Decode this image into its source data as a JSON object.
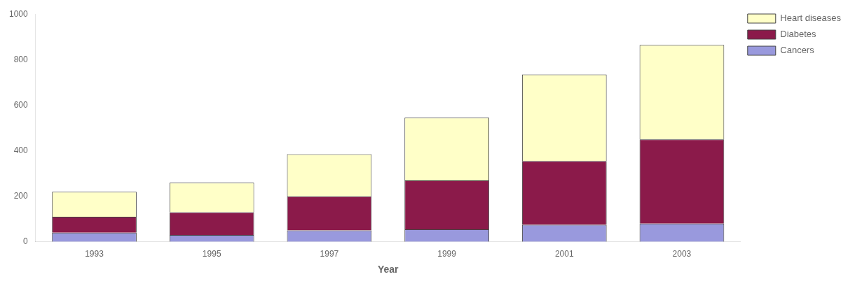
{
  "chart_data": {
    "type": "bar",
    "stacked": true,
    "categories": [
      "1993",
      "1995",
      "1997",
      "1999",
      "2001",
      "2003"
    ],
    "series": [
      {
        "name": "Cancers",
        "color": "#9999dd",
        "values": [
          40,
          30,
          50,
          55,
          75,
          80
        ]
      },
      {
        "name": "Diabetes",
        "color": "#8B1A4A",
        "values": [
          70,
          100,
          150,
          215,
          280,
          370
        ]
      },
      {
        "name": "Heart diseases",
        "color": "#FFFFC8",
        "values": [
          110,
          130,
          185,
          275,
          380,
          415
        ]
      }
    ],
    "xlabel": "Year",
    "ylim": [
      0,
      1000
    ],
    "yticks": [
      0,
      200,
      400,
      600,
      800,
      1000
    ],
    "grid": false,
    "legend": "upper right"
  }
}
